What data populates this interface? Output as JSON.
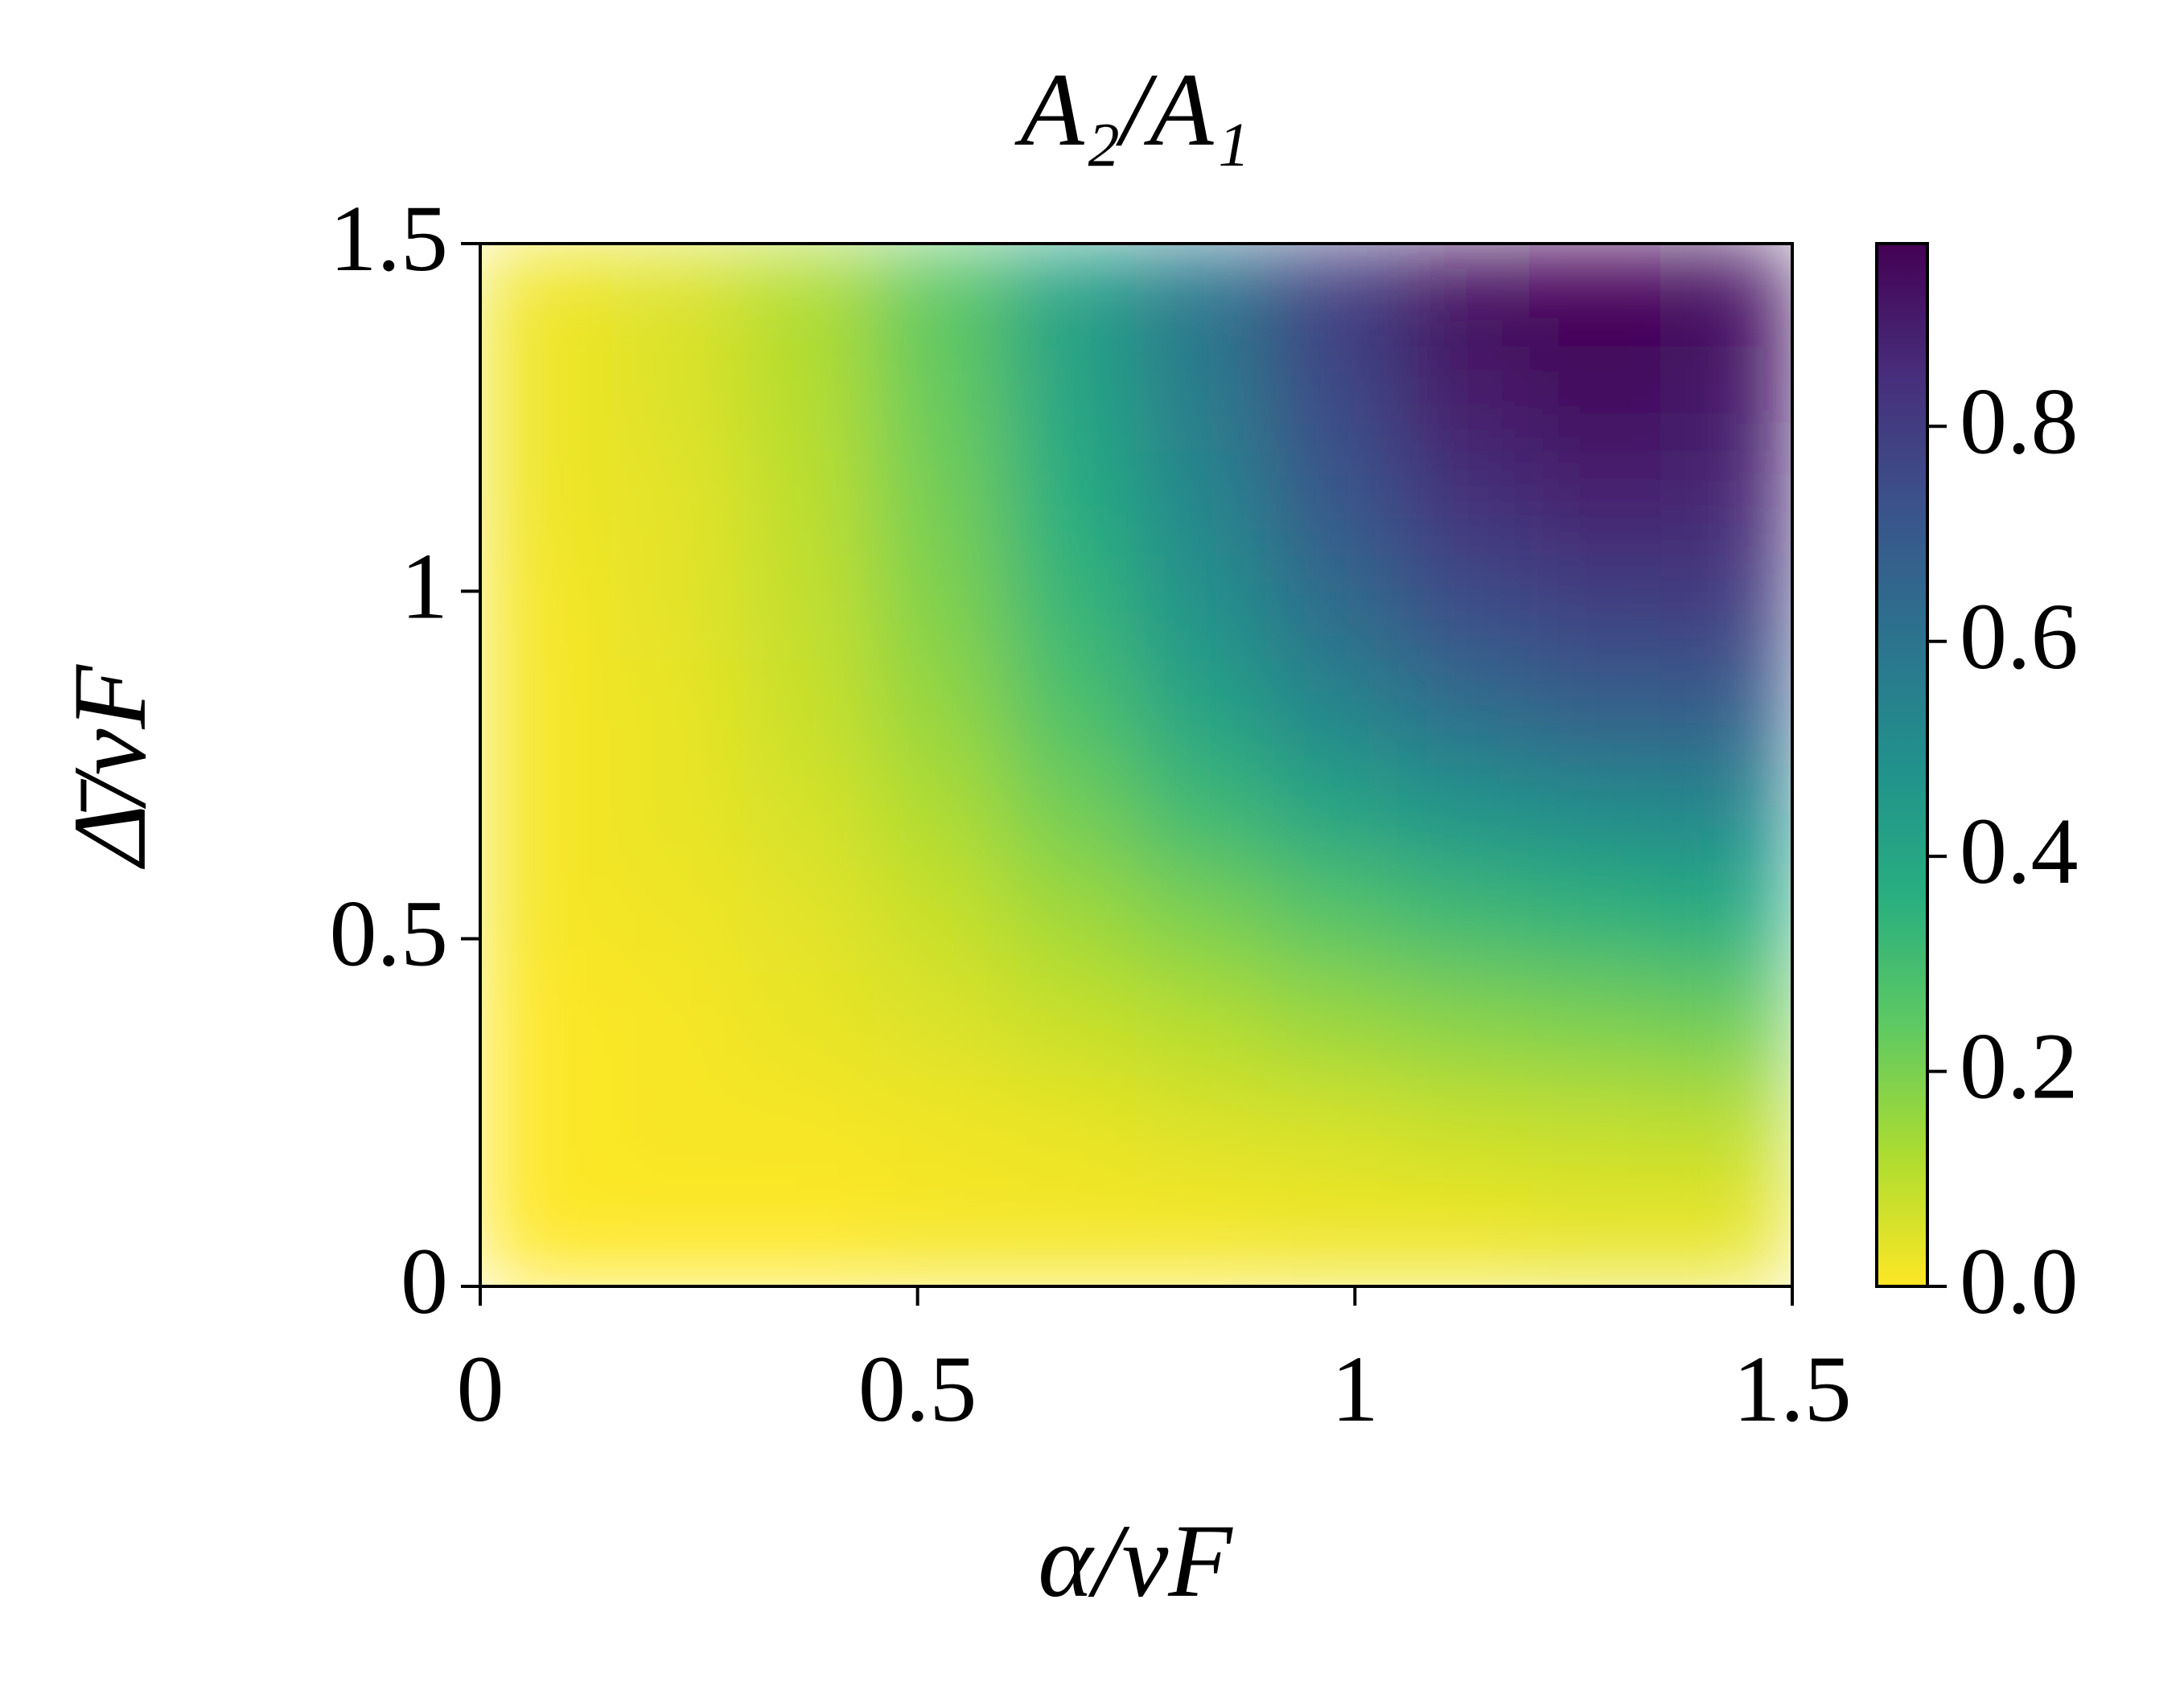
{
  "chart_data": {
    "type": "heatmap",
    "title": "A₂/A₁",
    "x_label": "α/vF",
    "y_label": "Δ̄/vF",
    "colormap": "viridis_r",
    "x": [
      0.075,
      0.225,
      0.375,
      0.525,
      0.675,
      0.825,
      0.975,
      1.125,
      1.275,
      1.425
    ],
    "y": [
      1.425,
      1.275,
      1.125,
      0.975,
      0.825,
      0.675,
      0.525,
      0.375,
      0.225,
      0.075
    ],
    "z": [
      [
        0.02,
        0.05,
        0.12,
        0.25,
        0.42,
        0.6,
        0.8,
        0.93,
        0.97,
        0.93
      ],
      [
        0.02,
        0.05,
        0.11,
        0.23,
        0.4,
        0.57,
        0.76,
        0.9,
        0.94,
        0.91
      ],
      [
        0.02,
        0.04,
        0.1,
        0.21,
        0.37,
        0.53,
        0.7,
        0.83,
        0.88,
        0.87
      ],
      [
        0.01,
        0.04,
        0.09,
        0.19,
        0.33,
        0.48,
        0.63,
        0.74,
        0.79,
        0.8
      ],
      [
        0.01,
        0.03,
        0.08,
        0.16,
        0.28,
        0.41,
        0.53,
        0.62,
        0.67,
        0.68
      ],
      [
        0.01,
        0.03,
        0.06,
        0.12,
        0.21,
        0.31,
        0.4,
        0.47,
        0.5,
        0.52
      ],
      [
        0.01,
        0.02,
        0.04,
        0.08,
        0.14,
        0.2,
        0.26,
        0.31,
        0.34,
        0.37
      ],
      [
        0.0,
        0.01,
        0.03,
        0.05,
        0.08,
        0.11,
        0.15,
        0.18,
        0.2,
        0.22
      ],
      [
        0.0,
        0.01,
        0.01,
        0.02,
        0.03,
        0.05,
        0.06,
        0.08,
        0.09,
        0.1
      ],
      [
        0.0,
        0.0,
        0.0,
        0.01,
        0.01,
        0.01,
        0.02,
        0.02,
        0.03,
        0.03
      ]
    ],
    "xlim": [
      0,
      1.5
    ],
    "xticks": [
      0,
      0.5,
      1,
      1.5
    ],
    "ylim": [
      0,
      1.5
    ],
    "yticks": [
      0,
      0.5,
      1,
      1.5
    ],
    "zlim": [
      0,
      0.97
    ],
    "zticks": [
      {
        "value": 0,
        "label": "0.0"
      },
      {
        "value": 0.2,
        "label": "0.2"
      },
      {
        "value": 0.4,
        "label": "0.4"
      },
      {
        "value": 0.6,
        "label": "0.6"
      },
      {
        "value": 0.8,
        "label": "0.8"
      }
    ]
  }
}
